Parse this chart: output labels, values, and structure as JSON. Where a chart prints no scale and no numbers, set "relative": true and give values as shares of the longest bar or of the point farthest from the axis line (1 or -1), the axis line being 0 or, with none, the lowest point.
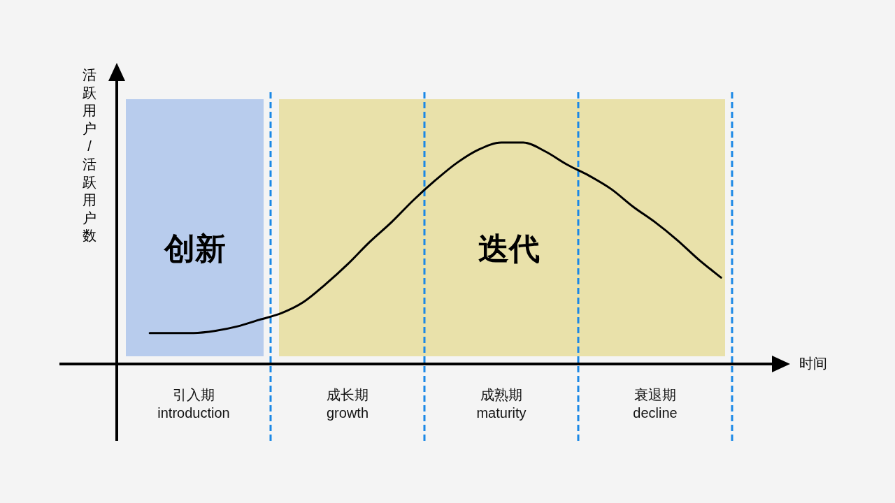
{
  "chart_data": {
    "type": "line",
    "relative": true,
    "xlabel": "时间",
    "ylabel": "活跃用户/活跃用户数",
    "annotations": [
      "创新",
      "迭代"
    ],
    "categories": [
      null,
      null,
      null,
      "引入期\nintroduction",
      null,
      null,
      null,
      null,
      null,
      null,
      "成长期\ngrowth",
      null,
      null,
      null,
      null,
      null,
      null,
      "成熟期\nmaturity",
      null,
      null,
      null,
      null,
      null,
      null,
      "衰退期\ndecline",
      null,
      null,
      null
    ],
    "series": [
      {
        "color": "#000000",
        "values": [
          null,
          0.14,
          0.14,
          0.14,
          0.15,
          0.17,
          0.2,
          0.23,
          0.28,
          0.36,
          0.45,
          0.55,
          0.64,
          0.74,
          0.83,
          0.91,
          0.97,
          1.0,
          1.0,
          0.96,
          0.9,
          0.85,
          0.79,
          0.71,
          0.64,
          0.56,
          0.47,
          0.39
        ]
      }
    ],
    "marker": "none",
    "line_style": "solid"
  }
}
